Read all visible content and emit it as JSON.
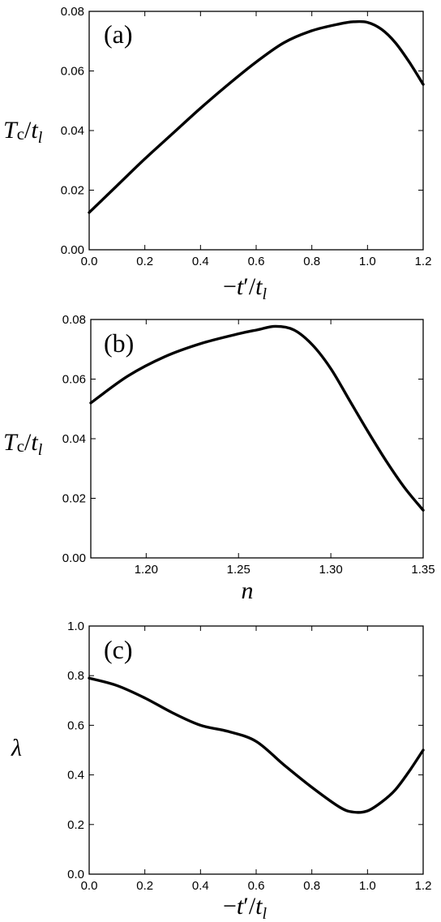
{
  "chart_data": [
    {
      "type": "line",
      "panel": "(a)",
      "xlabel": "−t′/t_l",
      "ylabel": "T_c/t_l",
      "xlim": [
        0.0,
        1.2
      ],
      "ylim": [
        0.0,
        0.08
      ],
      "xticks": [
        "0.0",
        "0.2",
        "0.4",
        "0.6",
        "0.8",
        "1.0",
        "1.2"
      ],
      "yticks": [
        "0.00",
        "0.02",
        "0.04",
        "0.06",
        "0.08"
      ],
      "grid": false,
      "series": [
        {
          "x": [
            0.0,
            0.1,
            0.2,
            0.3,
            0.4,
            0.5,
            0.6,
            0.7,
            0.8,
            0.9,
            0.95,
            1.0,
            1.05,
            1.1,
            1.15,
            1.2
          ],
          "y": [
            0.0125,
            0.0215,
            0.0305,
            0.039,
            0.0475,
            0.0555,
            0.063,
            0.0695,
            0.0735,
            0.0758,
            0.0765,
            0.0763,
            0.074,
            0.0695,
            0.063,
            0.0555
          ]
        }
      ]
    },
    {
      "type": "line",
      "panel": "(b)",
      "xlabel": "n",
      "ylabel": "T_c/t_l",
      "xlim": [
        1.17,
        1.35
      ],
      "ylim": [
        0.0,
        0.08
      ],
      "xticks": [
        "1.20",
        "1.25",
        "1.30",
        "1.35"
      ],
      "yticks": [
        "0.00",
        "0.02",
        "0.04",
        "0.06",
        "0.08"
      ],
      "grid": false,
      "series": [
        {
          "x": [
            1.17,
            1.19,
            1.21,
            1.23,
            1.25,
            1.26,
            1.27,
            1.28,
            1.29,
            1.3,
            1.31,
            1.32,
            1.33,
            1.34,
            1.35
          ],
          "y": [
            0.052,
            0.061,
            0.0675,
            0.072,
            0.0752,
            0.0765,
            0.0777,
            0.0765,
            0.0715,
            0.0635,
            0.053,
            0.0425,
            0.0325,
            0.0235,
            0.016
          ]
        }
      ]
    },
    {
      "type": "line",
      "panel": "(c)",
      "xlabel": "−t′/t_l",
      "ylabel": "λ",
      "xlim": [
        0.0,
        1.2
      ],
      "ylim": [
        0.0,
        1.0
      ],
      "xticks": [
        "0.0",
        "0.2",
        "0.4",
        "0.6",
        "0.8",
        "1.0",
        "1.2"
      ],
      "yticks": [
        "0.0",
        "0.2",
        "0.4",
        "0.6",
        "0.8",
        "1.0"
      ],
      "grid": false,
      "series": [
        {
          "x": [
            0.0,
            0.1,
            0.2,
            0.3,
            0.4,
            0.5,
            0.6,
            0.7,
            0.8,
            0.9,
            0.95,
            1.0,
            1.05,
            1.1,
            1.15,
            1.2
          ],
          "y": [
            0.79,
            0.76,
            0.71,
            0.65,
            0.6,
            0.575,
            0.535,
            0.44,
            0.35,
            0.27,
            0.25,
            0.255,
            0.29,
            0.34,
            0.415,
            0.5
          ]
        }
      ]
    }
  ]
}
